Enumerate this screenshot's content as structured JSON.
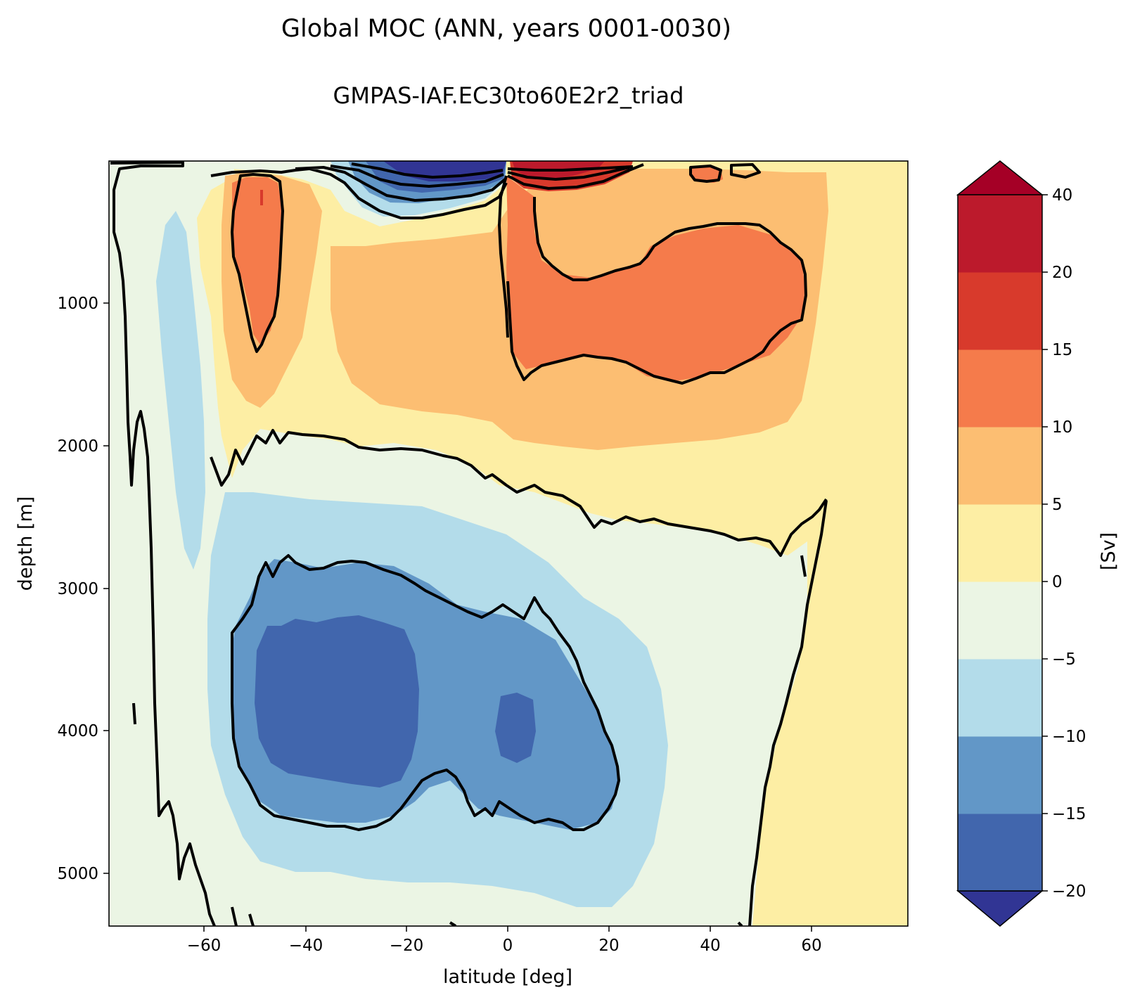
{
  "chart_data": {
    "type": "contour",
    "title": "Global MOC (ANN, years 0001-0030)",
    "subtitle": "GMPAS-IAF.EC30to60E2r2_triad",
    "xlabel": "latitude [deg]",
    "ylabel": "depth [m]",
    "xlim": [
      -79,
      79
    ],
    "ylim": [
      5390,
      0
    ],
    "y_inverted": true,
    "x_ticks": [
      -60,
      -40,
      -20,
      0,
      20,
      40,
      60
    ],
    "x_tick_labels": [
      "−60",
      "−40",
      "−20",
      "0",
      "20",
      "40",
      "60"
    ],
    "y_ticks": [
      1000,
      2000,
      3000,
      4000,
      5000
    ],
    "y_tick_labels": [
      "1000",
      "2000",
      "3000",
      "4000",
      "5000"
    ],
    "colorbar": {
      "label": "[Sv]",
      "levels": [
        -20,
        -15,
        -10,
        -5,
        0,
        5,
        10,
        15,
        20,
        40
      ],
      "level_labels": [
        "−20",
        "−15",
        "−10",
        "−5",
        "0",
        "5",
        "10",
        "15",
        "20",
        "40"
      ],
      "extend": "both",
      "colors": [
        "#4166ad",
        "#6297c7",
        "#b3dcea",
        "#ebf5e4",
        "#fdeea4",
        "#fcbe72",
        "#f57b4b",
        "#d83a2c",
        "#bc1a2c"
      ],
      "under_color": "#313594",
      "over_color": "#a50026"
    },
    "features": [
      {
        "name": "upper-cell-north",
        "sign": "positive",
        "max_band": "10-15",
        "lat_range": [
          1,
          58
        ],
        "depth_range": [
          0,
          2100
        ]
      },
      {
        "name": "upper-cell-south",
        "sign": "positive",
        "max_band": "10-15",
        "lat_range": [
          -55,
          -30
        ],
        "depth_range": [
          0,
          2300
        ]
      },
      {
        "name": "surface-southern-cell",
        "sign": "negative",
        "min_band": "<-20",
        "lat_range": [
          -30,
          0
        ],
        "depth_range": [
          0,
          300
        ]
      },
      {
        "name": "abyssal-cell",
        "sign": "negative",
        "min_band": "-15 to -20",
        "lat_range": [
          -55,
          22
        ],
        "depth_range": [
          2500,
          5000
        ]
      },
      {
        "name": "surface-northern-cell",
        "sign": "positive",
        "max_band": ">20",
        "lat_range": [
          0,
          25
        ],
        "depth_range": [
          0,
          200
        ]
      }
    ]
  }
}
